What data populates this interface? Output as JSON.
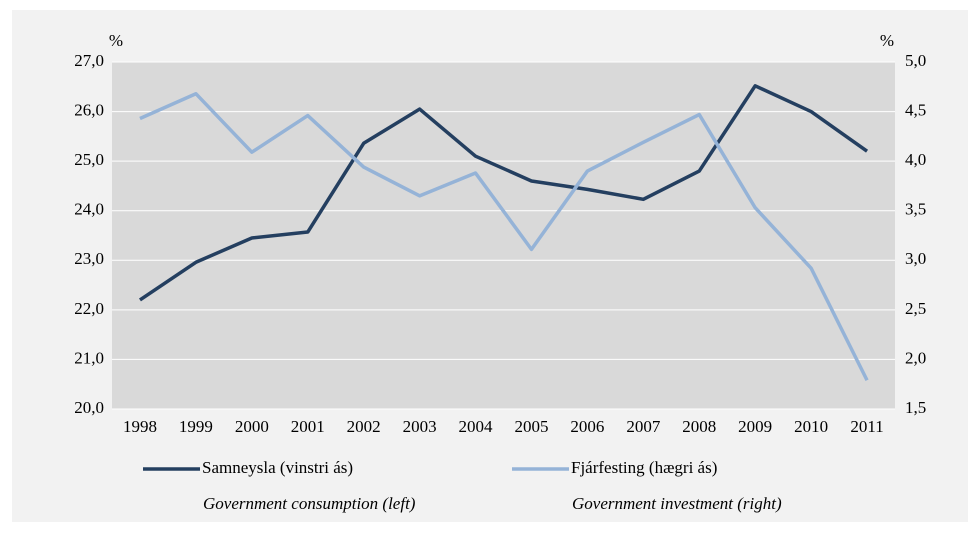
{
  "chart_data": {
    "type": "line",
    "y_label": "%",
    "y2_label": "%",
    "categories": [
      "1998",
      "1999",
      "2000",
      "2001",
      "2002",
      "2003",
      "2004",
      "2005",
      "2006",
      "2007",
      "2008",
      "2009",
      "2010",
      "2011"
    ],
    "series": [
      {
        "name": "Samneysla (vinstri ás)",
        "subtitle": "Government consumption (left)",
        "color": "#243f60",
        "axis": "y",
        "values": [
          22.2,
          22.96,
          23.45,
          23.57,
          25.36,
          26.05,
          25.1,
          24.6,
          24.43,
          24.23,
          24.8,
          26.52,
          26.0,
          25.2
        ]
      },
      {
        "name": "Fjárfesting (hægri ás)",
        "subtitle": "Government investment (right)",
        "color": "#95b3d7",
        "axis": "y2",
        "values": [
          4.43,
          4.68,
          4.09,
          4.46,
          3.94,
          3.65,
          3.88,
          3.11,
          3.9,
          4.19,
          4.47,
          3.53,
          2.92,
          1.79
        ]
      }
    ],
    "ylim": [
      20,
      27
    ],
    "yticks": [
      {
        "value": 20,
        "label": "20,0"
      },
      {
        "value": 21,
        "label": "21,0"
      },
      {
        "value": 22,
        "label": "22,0"
      },
      {
        "value": 23,
        "label": "23,0"
      },
      {
        "value": 24,
        "label": "24,0"
      },
      {
        "value": 25,
        "label": "25,0"
      },
      {
        "value": 26,
        "label": "26,0"
      },
      {
        "value": 27,
        "label": "27,0"
      }
    ],
    "y2lim": [
      1.5,
      5
    ],
    "y2ticks": [
      {
        "value": 1.5,
        "label": "1,5"
      },
      {
        "value": 2,
        "label": "2,0"
      },
      {
        "value": 2.5,
        "label": "2,5"
      },
      {
        "value": 3,
        "label": "3,0"
      },
      {
        "value": 3.5,
        "label": "3,5"
      },
      {
        "value": 4,
        "label": "4,0"
      },
      {
        "value": 4.5,
        "label": "4,5"
      },
      {
        "value": 5,
        "label": "5,0"
      }
    ],
    "grid": true
  }
}
